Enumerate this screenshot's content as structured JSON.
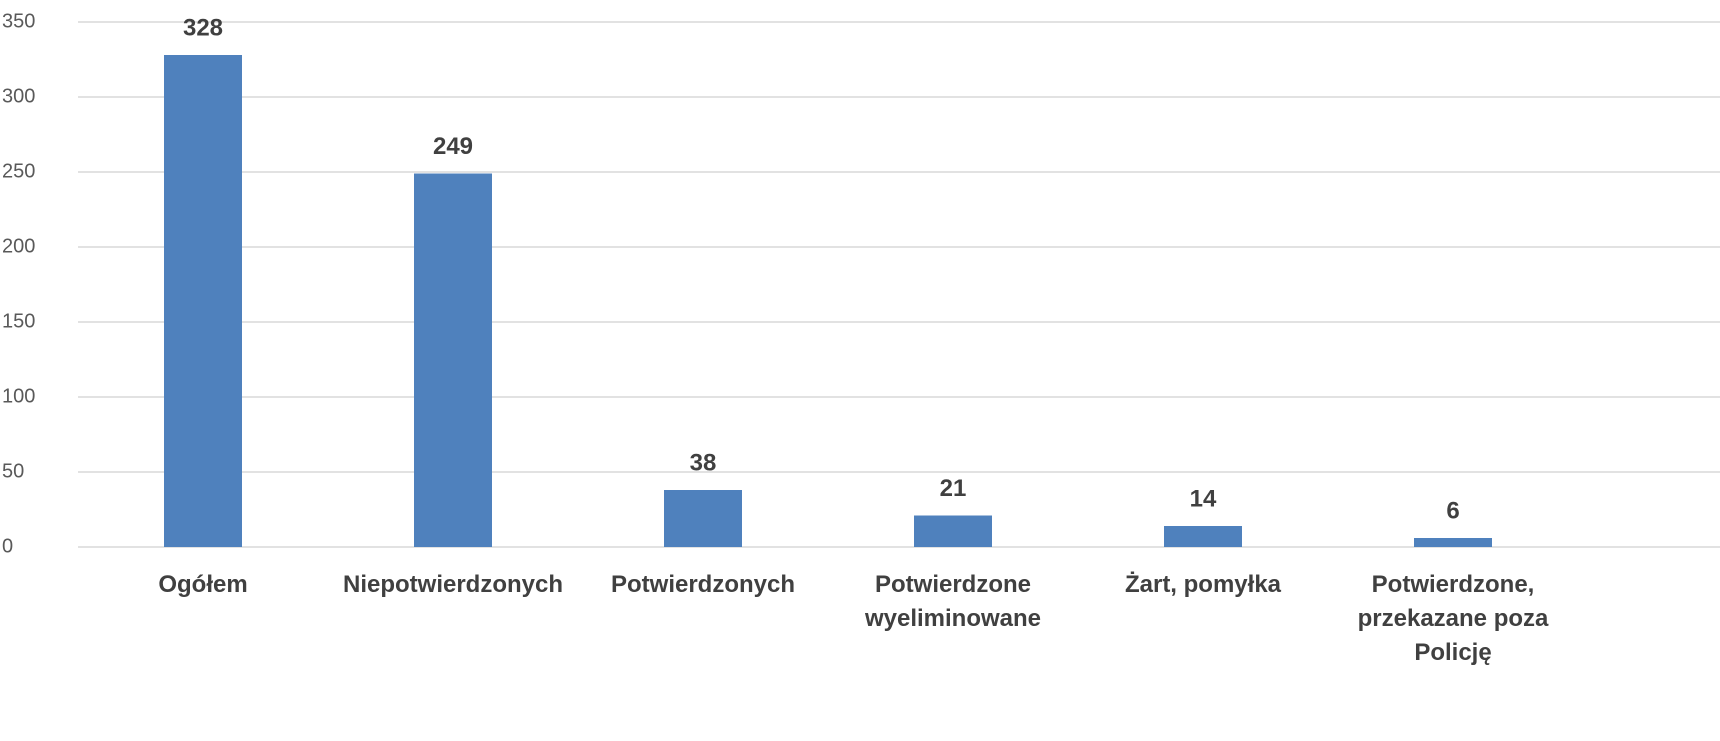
{
  "chart_data": {
    "type": "bar",
    "categories": [
      "Ogółem",
      "Niepotwierdzonych",
      "Potwierdzonych",
      "Potwierdzone wyeliminowane",
      "Żart, pomyłka",
      "Potwierdzone, przekazane poza Policję"
    ],
    "values": [
      328,
      249,
      38,
      21,
      14,
      6
    ],
    "color": "#4f81bd",
    "ylim": [
      0,
      350
    ],
    "yticks": [
      0,
      50,
      100,
      150,
      200,
      250,
      300,
      350
    ],
    "grid": true
  }
}
